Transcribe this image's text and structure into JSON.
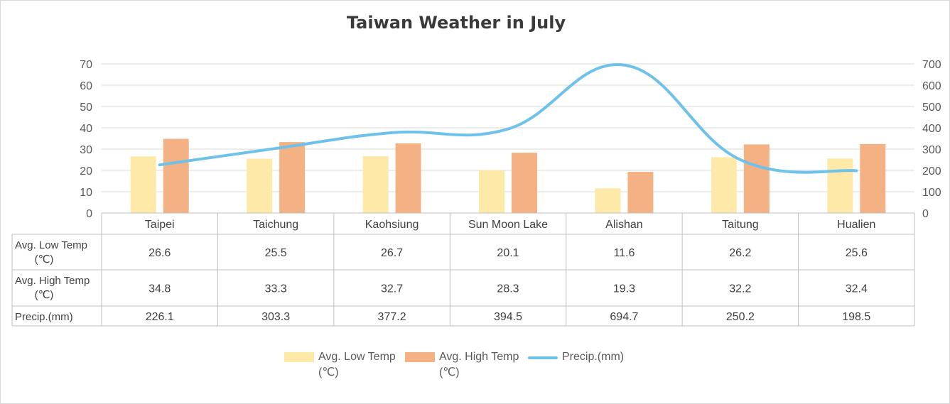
{
  "chart_data": {
    "type": "bar",
    "title": "Taiwan Weather in July",
    "categories": [
      "Taipei",
      "Taichung",
      "Kaohsiung",
      "Sun Moon Lake",
      "Alishan",
      "Taitung",
      "Hualien"
    ],
    "series": [
      {
        "name": "Avg. Low Temp (℃)",
        "label_lines": [
          "Avg. Low Temp",
          "(℃)"
        ],
        "type": "bar",
        "axis": "left",
        "color": "#FFE9A8",
        "values": [
          26.6,
          25.5,
          26.7,
          20.1,
          11.6,
          26.2,
          25.6
        ]
      },
      {
        "name": "Avg. High Temp (℃)",
        "label_lines": [
          "Avg. High Temp",
          "(℃)"
        ],
        "type": "bar",
        "axis": "left",
        "color": "#F4B183",
        "values": [
          34.8,
          33.3,
          32.7,
          28.3,
          19.3,
          32.2,
          32.4
        ]
      },
      {
        "name": "Precip.(mm)",
        "label_lines": [
          "Precip.(mm)"
        ],
        "type": "line",
        "axis": "right",
        "color": "#6EC1EA",
        "values": [
          226.1,
          303.3,
          377.2,
          394.5,
          694.7,
          250.2,
          198.5
        ]
      }
    ],
    "y_left": {
      "min": 0,
      "max": 70,
      "step": 10,
      "ticks": [
        "0",
        "10",
        "20",
        "30",
        "40",
        "50",
        "60",
        "70"
      ]
    },
    "y_right": {
      "min": 0,
      "max": 700,
      "step": 100,
      "ticks": [
        "0",
        "100",
        "200",
        "300",
        "400",
        "500",
        "600",
        "700"
      ]
    },
    "grid": true,
    "legend_position": "bottom",
    "data_table": {
      "rows": [
        {
          "label_lines": [
            "Avg. Low Temp",
            "(℃)"
          ],
          "cells": [
            "26.6",
            "25.5",
            "26.7",
            "20.1",
            "11.6",
            "26.2",
            "25.6"
          ]
        },
        {
          "label_lines": [
            "Avg. High Temp",
            "(℃)"
          ],
          "cells": [
            "34.8",
            "33.3",
            "32.7",
            "28.3",
            "19.3",
            "32.2",
            "32.4"
          ]
        },
        {
          "label_lines": [
            "Precip.(mm)"
          ],
          "cells": [
            "226.1",
            "303.3",
            "377.2",
            "394.5",
            "694.7",
            "250.2",
            "198.5"
          ]
        }
      ]
    }
  }
}
